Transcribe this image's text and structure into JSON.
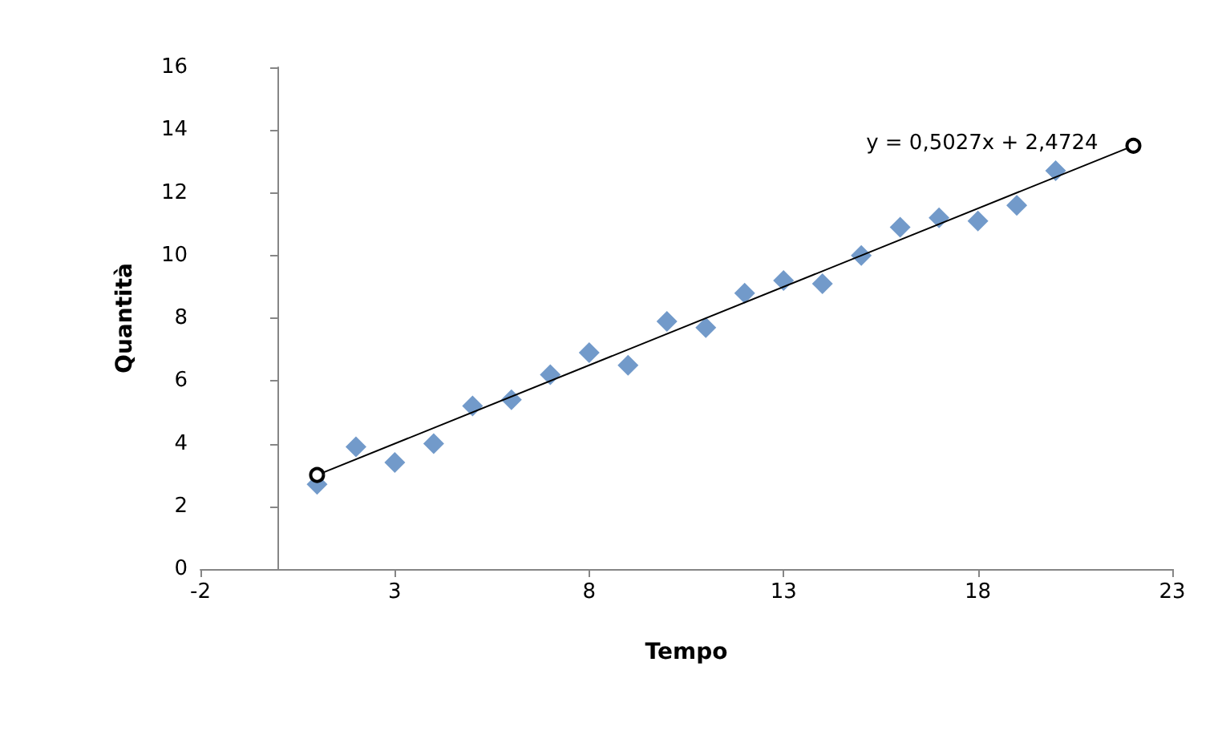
{
  "chart_data": {
    "type": "scatter",
    "xlabel": "Tempo",
    "ylabel": "Quantità",
    "xlim": [
      -2,
      23
    ],
    "xticks": [
      -2,
      3,
      8,
      13,
      18,
      23
    ],
    "ylim": [
      0,
      16
    ],
    "yticks": [
      0,
      2,
      4,
      6,
      8,
      10,
      12,
      14,
      16
    ],
    "marker": "diamond",
    "annotations": [
      "y = 0,5027x + 2,4724"
    ],
    "series": [
      {
        "color": "#4f81bd",
        "x": [
          1,
          2,
          3,
          4,
          5,
          6,
          7,
          8,
          9,
          10,
          11,
          12,
          13,
          14,
          15,
          16,
          17,
          18,
          19,
          20
        ],
        "values": [
          2.7,
          3.9,
          3.4,
          4.0,
          5.2,
          5.4,
          6.2,
          6.9,
          6.5,
          7.9,
          7.7,
          8.8,
          9.2,
          9.1,
          10.0,
          10.9,
          11.2,
          11.1,
          11.6,
          12.7
        ]
      },
      {
        "type": "line",
        "color": "#000000",
        "marker": "circle",
        "x": [
          1,
          22
        ],
        "values": [
          3.0,
          13.5
        ]
      }
    ]
  }
}
